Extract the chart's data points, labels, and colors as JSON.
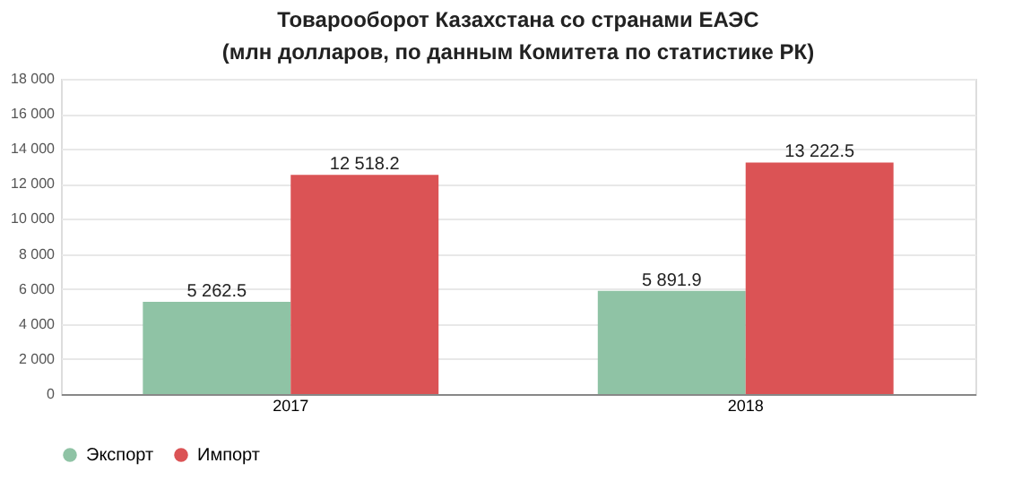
{
  "chart_data": {
    "type": "bar",
    "title": "Товарооборот Казахстана со странами ЕАЭС",
    "subtitle": "(млн долларов, по данным Комитета по статистике РК)",
    "categories": [
      "2017",
      "2018"
    ],
    "series": [
      {
        "name": "Экспорт",
        "color": "#8fc3a5",
        "values": [
          5262.5,
          5891.9
        ],
        "value_labels": [
          "5 262.5",
          "5 891.9"
        ]
      },
      {
        "name": "Импорт",
        "color": "#db5355",
        "values": [
          12518.2,
          13222.5
        ],
        "value_labels": [
          "12 518.2",
          "13 222.5"
        ]
      }
    ],
    "ylim": [
      0,
      18000
    ],
    "yticks": [
      0,
      {
        "value": 2000,
        "label": "2 000"
      },
      {
        "value": 4000,
        "label": "4 000"
      },
      {
        "value": 6000,
        "label": "6 000"
      },
      {
        "value": 8000,
        "label": "8 000"
      },
      {
        "value": 10000,
        "label": "10 000"
      },
      {
        "value": 12000,
        "label": "12 000"
      },
      {
        "value": 14000,
        "label": "14 000"
      },
      {
        "value": 16000,
        "label": "16 000"
      },
      {
        "value": 18000,
        "label": "18 000"
      }
    ],
    "grid": "y",
    "legend": "bottom"
  }
}
